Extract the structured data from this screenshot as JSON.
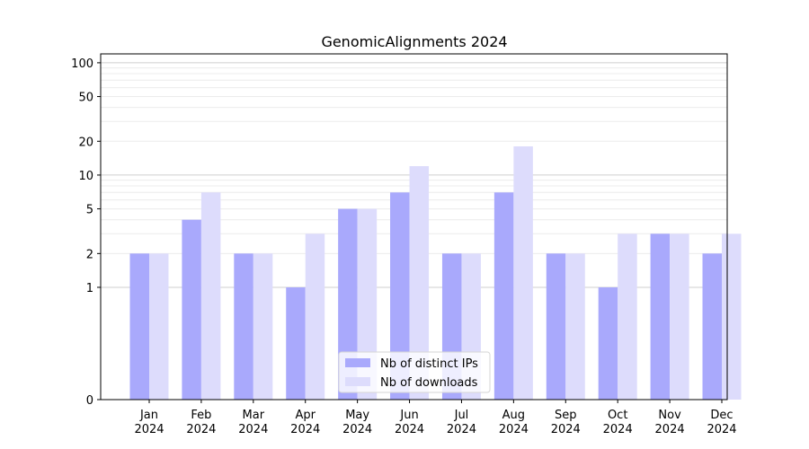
{
  "chart_data": {
    "type": "bar",
    "title": "GenomicAlignments 2024",
    "xlabel": "",
    "ylabel": "",
    "yscale": "symlog",
    "ylim": [
      0,
      120
    ],
    "y_ticks": [
      0,
      1,
      2,
      5,
      10,
      20,
      50,
      100
    ],
    "grid": true,
    "legend_position": "bottom-center",
    "categories": [
      [
        "Jan",
        "2024"
      ],
      [
        "Feb",
        "2024"
      ],
      [
        "Mar",
        "2024"
      ],
      [
        "Apr",
        "2024"
      ],
      [
        "May",
        "2024"
      ],
      [
        "Jun",
        "2024"
      ],
      [
        "Jul",
        "2024"
      ],
      [
        "Aug",
        "2024"
      ],
      [
        "Sep",
        "2024"
      ],
      [
        "Oct",
        "2024"
      ],
      [
        "Nov",
        "2024"
      ],
      [
        "Dec",
        "2024"
      ]
    ],
    "series": [
      {
        "name": "Nb of distinct IPs",
        "color": "#a9a9fc",
        "values": [
          2,
          4,
          2,
          1,
          5,
          7,
          2,
          7,
          2,
          1,
          3,
          2
        ]
      },
      {
        "name": "Nb of downloads",
        "color": "#dddcfc",
        "values": [
          2,
          7,
          2,
          3,
          5,
          12,
          2,
          18,
          2,
          3,
          3,
          3
        ]
      }
    ]
  }
}
